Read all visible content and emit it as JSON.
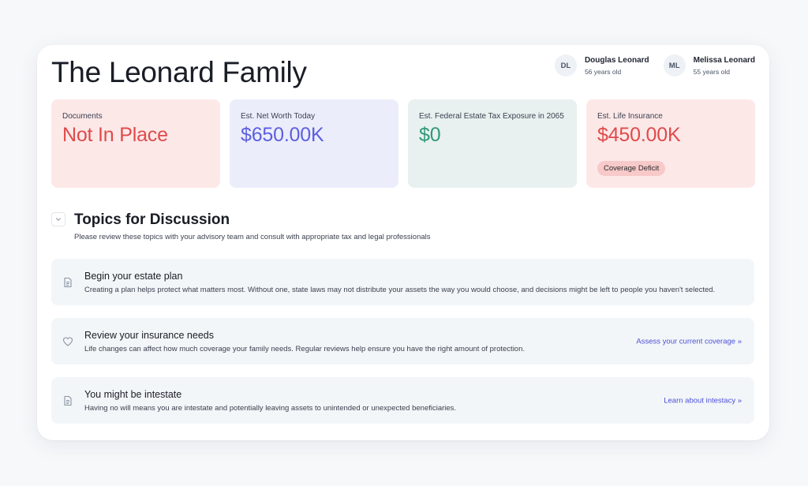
{
  "family": {
    "title": "The Leonard Family"
  },
  "members": [
    {
      "initials": "DL",
      "name": "Douglas Leonard",
      "age": "56 years old"
    },
    {
      "initials": "ML",
      "name": "Melissa Leonard",
      "age": "55 years old"
    }
  ],
  "stats": [
    {
      "label": "Documents",
      "value": "Not In Place",
      "tone": "#e04a4a"
    },
    {
      "label": "Est. Net Worth Today",
      "value": "$650.00K",
      "tone": "#5b5fe0"
    },
    {
      "label": "Est. Federal Estate Tax Exposure in 2065",
      "value": "$0",
      "tone": "#2f9a7a"
    },
    {
      "label": "Est. Life Insurance",
      "value": "$450.00K",
      "tone": "#e04a4a",
      "badge": "Coverage Deficit"
    }
  ],
  "topics": {
    "title": "Topics for Discussion",
    "subtitle": "Please review these topics with your advisory team and consult with appropriate tax and legal professionals",
    "items": [
      {
        "icon": "document-icon",
        "title": "Begin your estate plan",
        "description": "Creating a plan helps protect what matters most. Without one, state laws may not distribute your assets the way you would choose, and decisions might be left to people you haven't selected."
      },
      {
        "icon": "heart-icon",
        "title": "Review your insurance needs",
        "description": "Life changes can affect how much coverage your family needs. Regular reviews help ensure you have the right amount of protection.",
        "link": "Assess your current coverage »"
      },
      {
        "icon": "document-icon",
        "title": "You might be intestate",
        "description": "Having no will means you are intestate and potentially leaving assets to unintended or unexpected beneficiaries.",
        "link": "Learn about intestacy »"
      }
    ]
  }
}
